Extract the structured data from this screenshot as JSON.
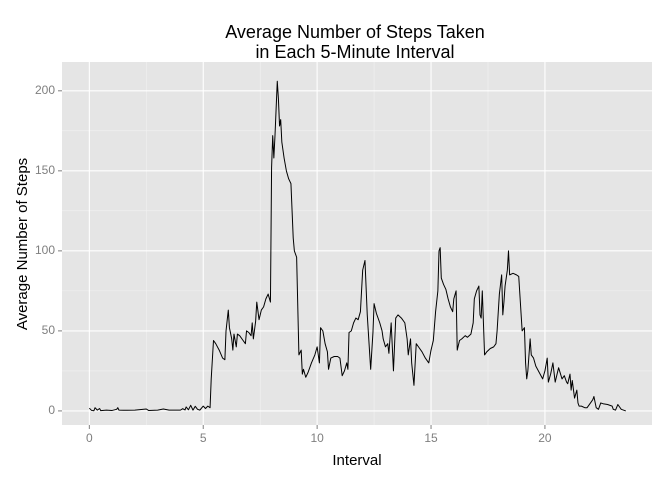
{
  "chart_data": {
    "type": "line",
    "title": [
      "Average Number of Steps Taken",
      "in Each 5-Minute Interval"
    ],
    "x_label": "Interval",
    "y_label": "Average Number of Steps",
    "color": "#000000",
    "grid": true,
    "xlim": [
      -1.2,
      24.7
    ],
    "ylim": [
      -8.8,
      218
    ],
    "xticks": [
      0,
      5,
      10,
      15,
      20
    ],
    "yticks": [
      0,
      50,
      100,
      150,
      200
    ],
    "x": [
      0,
      0.1,
      0.2,
      0.25,
      0.35,
      0.45,
      0.5,
      0.75,
      1,
      1.2,
      1.25,
      1.3,
      1.5,
      2,
      2.5,
      2.6,
      3,
      3.25,
      3.5,
      4,
      4.1,
      4.2,
      4.25,
      4.35,
      4.45,
      4.55,
      4.65,
      4.75,
      4.85,
      5,
      5.1,
      5.2,
      5.3,
      5.35,
      5.45,
      5.55,
      5.7,
      5.85,
      5.95,
      6,
      6.1,
      6.15,
      6.25,
      6.3,
      6.35,
      6.45,
      6.5,
      6.6,
      6.75,
      6.85,
      6.9,
      7,
      7.1,
      7.15,
      7.2,
      7.3,
      7.35,
      7.45,
      7.55,
      7.65,
      7.75,
      7.85,
      7.95,
      8,
      8.05,
      8.1,
      8.15,
      8.25,
      8.3,
      8.35,
      8.4,
      8.45,
      8.55,
      8.65,
      8.75,
      8.85,
      8.95,
      9,
      9.1,
      9.2,
      9.3,
      9.35,
      9.4,
      9.5,
      9.6,
      9.75,
      9.9,
      10,
      10.1,
      10.15,
      10.25,
      10.35,
      10.45,
      10.5,
      10.6,
      10.75,
      10.9,
      11,
      11.1,
      11.2,
      11.3,
      11.35,
      11.4,
      11.5,
      11.6,
      11.7,
      11.8,
      11.9,
      12,
      12.1,
      12.2,
      12.35,
      12.45,
      12.5,
      12.6,
      12.75,
      12.85,
      12.9,
      13,
      13.1,
      13.15,
      13.25,
      13.35,
      13.45,
      13.55,
      13.7,
      13.85,
      13.95,
      14,
      14.1,
      14.15,
      14.25,
      14.35,
      14.45,
      14.6,
      14.75,
      14.9,
      15,
      15.1,
      15.2,
      15.3,
      15.35,
      15.4,
      15.45,
      15.55,
      15.65,
      15.75,
      15.85,
      15.95,
      16,
      16.1,
      16.15,
      16.25,
      16.35,
      16.5,
      16.6,
      16.75,
      16.85,
      16.9,
      17,
      17.1,
      17.15,
      17.2,
      17.25,
      17.35,
      17.45,
      17.6,
      17.75,
      17.85,
      17.9,
      18,
      18.1,
      18.15,
      18.2,
      18.25,
      18.35,
      18.4,
      18.45,
      18.6,
      18.75,
      18.85,
      19,
      19.1,
      19.15,
      19.2,
      19.25,
      19.35,
      19.4,
      19.5,
      19.6,
      19.75,
      19.9,
      20,
      20.1,
      20.15,
      20.25,
      20.35,
      20.45,
      20.55,
      20.6,
      20.75,
      20.85,
      20.95,
      21,
      21.1,
      21.15,
      21.2,
      21.3,
      21.4,
      21.45,
      21.5,
      21.6,
      21.75,
      21.85,
      22,
      22.1,
      22.15,
      22.25,
      22.35,
      22.45,
      22.55,
      22.75,
      22.95,
      23,
      23.1,
      23.2,
      23.25,
      23.35,
      23.55
    ],
    "values": [
      1.7,
      0.3,
      0.1,
      2,
      0.5,
      1.5,
      0.2,
      0.5,
      0.3,
      1,
      2,
      0.5,
      0.4,
      0.5,
      1.2,
      0.3,
      0.5,
      1.2,
      0.5,
      0.5,
      1.4,
      0.6,
      2.5,
      0.7,
      3.5,
      0.5,
      2.9,
      1,
      0.5,
      3,
      1.5,
      3,
      2,
      20,
      44,
      42,
      38,
      33,
      32,
      50,
      63,
      52,
      45,
      38,
      48,
      40,
      48,
      47,
      44,
      42,
      50,
      49,
      47,
      55,
      45,
      56,
      68,
      57,
      63,
      65,
      70,
      73,
      68,
      152,
      172,
      158,
      172,
      206,
      195,
      178,
      182,
      168,
      158,
      150,
      145,
      142,
      108,
      100,
      96,
      35,
      38,
      23,
      26,
      21,
      24,
      30,
      35,
      40,
      30,
      52,
      50,
      42,
      37,
      26,
      33,
      34,
      34,
      33,
      22,
      25,
      30,
      26,
      49,
      50,
      55,
      58,
      57,
      62,
      88,
      94,
      60,
      26,
      49,
      67,
      61,
      55,
      50,
      45,
      40,
      42,
      36,
      55,
      25,
      58,
      60,
      58,
      55,
      45,
      35,
      45,
      30,
      16,
      42,
      40,
      37,
      33,
      30,
      38,
      44,
      62,
      75,
      100,
      102,
      83,
      79,
      76,
      70,
      65,
      62,
      70,
      75,
      38,
      44,
      45,
      47,
      46,
      48,
      55,
      70,
      75,
      78,
      60,
      58,
      75,
      35,
      37,
      39,
      40,
      42,
      50,
      73,
      85,
      60,
      68,
      78,
      88,
      100,
      85,
      86,
      85,
      84,
      50,
      52,
      30,
      20,
      25,
      45,
      35,
      33,
      28,
      24,
      20,
      25,
      33,
      18,
      23,
      30,
      18,
      24,
      27,
      20,
      22,
      18,
      17,
      23,
      13,
      19,
      8,
      13,
      5,
      3,
      3,
      2,
      2,
      5,
      7,
      9,
      2,
      1,
      5,
      4.5,
      4,
      3,
      1,
      0.5,
      4,
      3,
      1,
      0
    ]
  }
}
